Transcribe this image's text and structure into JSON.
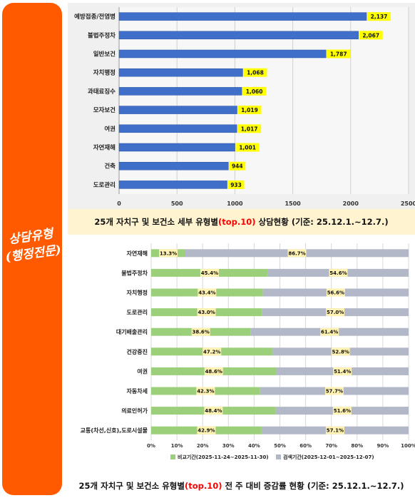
{
  "sidebar": {
    "label_line1": "상담유형",
    "label_line2": "(행정전문)"
  },
  "caption1": {
    "prefix": "25개 자치구 및 보건소 세부 유형별",
    "highlight": "(top.10)",
    "suffix": "상담현황  (기준: 25.12.1.~12.7.)"
  },
  "caption2": {
    "prefix": "25개 자치구 및 보건소 유형별",
    "highlight": "(top.10)",
    "suffix": " 전 주 대비 증감률 현황 (기준: 25.12.1.~12.7.)"
  },
  "colors": {
    "sidebar": "#ff5a00",
    "bar": "#3f6fc8",
    "label_box": "#ffff00",
    "compare": "#9ccf7a",
    "search": "#b2b8c8",
    "pct_box": "#fff2b3"
  },
  "chart_data": [
    {
      "type": "bar",
      "orientation": "horizontal",
      "categories": [
        "예방접종/전염병",
        "불법주정차",
        "일반보건",
        "자치행정",
        "과태료징수",
        "모자보건",
        "여권",
        "자연재해",
        "건축",
        "도로관리"
      ],
      "values": [
        2137,
        2067,
        1787,
        1068,
        1060,
        1019,
        1017,
        1001,
        944,
        933
      ],
      "value_labels": [
        "2,137",
        "2,067",
        "1,787",
        "1,068",
        "1,060",
        "1,019",
        "1,017",
        "1,001",
        "944",
        "933"
      ],
      "xlim": [
        0,
        2500
      ],
      "ticks": [
        "0",
        "500",
        "1000",
        "1500",
        "2000",
        "2500"
      ],
      "grid": true
    },
    {
      "type": "bar",
      "orientation": "horizontal",
      "stacked": "percent",
      "categories": [
        "자연재해",
        "불법주정차",
        "자치행정",
        "도로관리",
        "대기배출관리",
        "건강증진",
        "여권",
        "자동차세",
        "의료인허가",
        "교통(차선,신호),도로시설물"
      ],
      "series": [
        {
          "name": "비교기간(2025-11-24~2025-11-30)",
          "values": [
            13.3,
            45.4,
            43.4,
            43.0,
            38.6,
            47.2,
            48.6,
            42.3,
            48.4,
            42.9
          ],
          "labels": [
            "13.3%",
            "45.4%",
            "43.4%",
            "43.0%",
            "38.6%",
            "47.2%",
            "48.6%",
            "42.3%",
            "48.4%",
            "42.9%"
          ]
        },
        {
          "name": "검색기간(2025-12-01~2025-12-07)",
          "values": [
            86.7,
            54.6,
            56.6,
            57.0,
            61.4,
            52.8,
            51.4,
            57.7,
            51.6,
            57.1
          ],
          "labels": [
            "86.7%",
            "54.6%",
            "56.6%",
            "57.0%",
            "61.4%",
            "52.8%",
            "51.4%",
            "57.7%",
            "51.6%",
            "57.1%"
          ]
        }
      ],
      "xlim": [
        0,
        100
      ],
      "ticks": [
        "0%",
        "10%",
        "20%",
        "30%",
        "40%",
        "50%",
        "60%",
        "70%",
        "80%",
        "90%",
        "100%"
      ],
      "legend": "bottom",
      "grid": true
    }
  ]
}
